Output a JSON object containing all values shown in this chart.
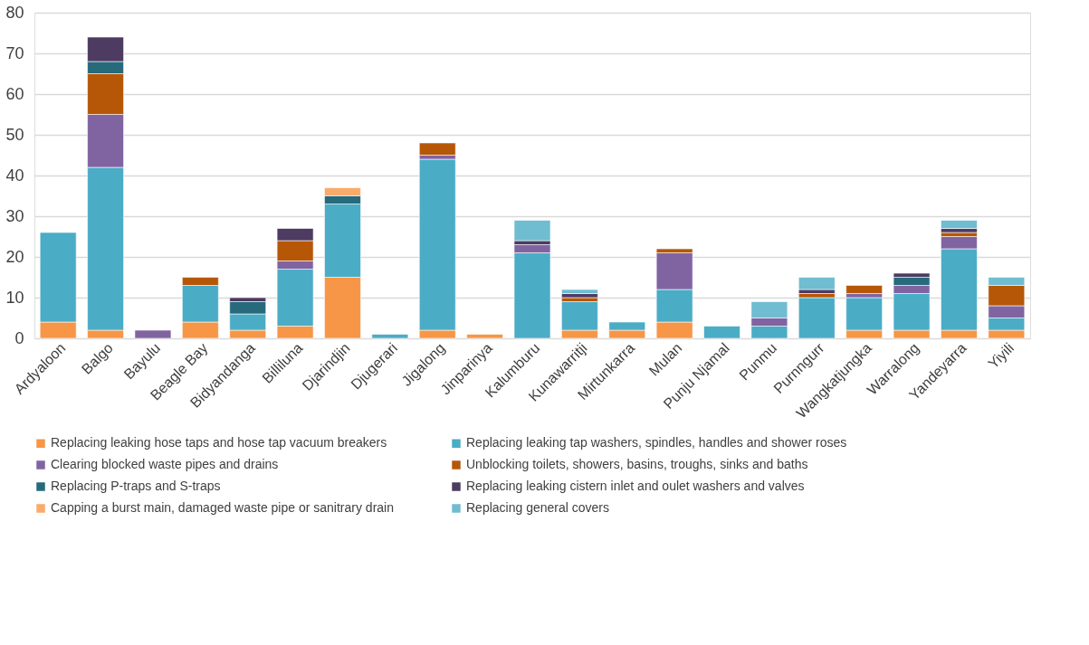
{
  "chart_data": {
    "type": "bar",
    "stacked": true,
    "categories": [
      "Ardyaloon",
      "Balgo",
      "Bayulu",
      "Beagle Bay",
      "Bidyandanga",
      "Billiluna",
      "Djarindjin",
      "Djugerari",
      "Jigalong",
      "Jinparinya",
      "Kalumburu",
      "Kunawarritji",
      "Mirtunkarra",
      "Mulan",
      "Punju Njamal",
      "Punmu",
      "Purnngurr",
      "Wangkatjungka",
      "Warralong",
      "Yandeyarra",
      "Yiyili"
    ],
    "series": [
      {
        "name": "Replacing leaking hose taps and hose tap vacuum breakers",
        "color": "#f79646",
        "values": [
          4,
          2,
          null,
          4,
          2,
          3,
          15,
          null,
          2,
          1,
          null,
          2,
          2,
          4,
          null,
          null,
          null,
          2,
          2,
          2,
          2
        ]
      },
      {
        "name": "Replacing leaking tap washers, spindles, handles and shower roses",
        "color": "#4bacc6",
        "values": [
          22,
          40,
          null,
          9,
          4,
          14,
          18,
          1,
          42,
          null,
          21,
          7,
          2,
          8,
          3,
          3,
          10,
          8,
          9,
          20,
          3
        ]
      },
      {
        "name": "Clearing blocked waste pipes and drains",
        "color": "#8064a2",
        "values": [
          null,
          13,
          2,
          null,
          null,
          2,
          null,
          null,
          1,
          null,
          2,
          null,
          null,
          9,
          null,
          2,
          null,
          1,
          2,
          3,
          3
        ]
      },
      {
        "name": "Unblocking toilets, showers, basins, troughs, sinks and baths",
        "color": "#b65708",
        "values": [
          null,
          10,
          null,
          2,
          null,
          5,
          null,
          null,
          3,
          null,
          null,
          1,
          null,
          1,
          null,
          null,
          1,
          2,
          null,
          1,
          5
        ]
      },
      {
        "name": "Replacing P-traps and S-traps",
        "color": "#276a7c",
        "values": [
          null,
          3,
          null,
          null,
          3,
          null,
          2,
          null,
          null,
          null,
          null,
          null,
          null,
          null,
          null,
          null,
          null,
          null,
          2,
          null,
          null
        ]
      },
      {
        "name": "Replacing leaking cistern inlet and oulet washers and valves",
        "color": "#4d3b62",
        "values": [
          null,
          6,
          null,
          null,
          1,
          3,
          null,
          null,
          null,
          null,
          1,
          1,
          null,
          null,
          null,
          null,
          1,
          null,
          1,
          1,
          null
        ]
      },
      {
        "name": "Capping a burst main, damaged waste pipe or sanitrary drain",
        "color": "#f9ab6b",
        "values": [
          null,
          null,
          null,
          null,
          null,
          null,
          2,
          null,
          null,
          null,
          null,
          null,
          null,
          null,
          null,
          null,
          null,
          null,
          null,
          null,
          null
        ]
      },
      {
        "name": "Replacing general covers",
        "color": "#70bcd1",
        "values": [
          null,
          null,
          null,
          null,
          null,
          null,
          null,
          null,
          null,
          null,
          5,
          1,
          null,
          null,
          null,
          4,
          3,
          null,
          null,
          2,
          2
        ]
      }
    ],
    "ylim": [
      0,
      80
    ],
    "yticks": [
      0,
      10,
      20,
      30,
      40,
      50,
      60,
      70,
      80
    ],
    "grid": "y",
    "legend": "bottom"
  }
}
